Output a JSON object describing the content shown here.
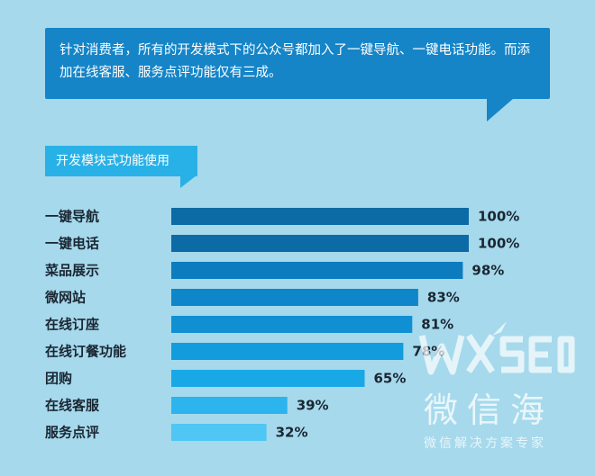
{
  "callout": {
    "text": "针对消费者，所有的开发模式下的公众号都加入了一键导航、一键电话功能。而添加在线客服、服务点评功能仅有三成。"
  },
  "section_tag": {
    "label": "开发模块式功能使用"
  },
  "watermark": {
    "logo_text": "WXSEO",
    "name": "微信海",
    "subtitle": "微信解决方案专家"
  },
  "colors": {
    "background": "#a6d9ec",
    "callout": "#1585c8",
    "tag": "#28b1e6",
    "bars": [
      "#0c6aa5",
      "#0c6aa5",
      "#0d7cbe",
      "#0e86c9",
      "#1090d2",
      "#129cdd",
      "#19a8e6",
      "#2cb4ee",
      "#4fc6f4"
    ]
  },
  "chart_data": {
    "type": "bar",
    "orientation": "horizontal",
    "categories": [
      "一键导航",
      "一键电话",
      "菜品展示",
      "微网站",
      "在线订座",
      "在线订餐功能",
      "团购",
      "在线客服",
      "服务点评"
    ],
    "values": [
      100,
      100,
      98,
      83,
      81,
      78,
      65,
      39,
      32
    ],
    "value_labels": [
      "100%",
      "100%",
      "98%",
      "83%",
      "81%",
      "78%",
      "65%",
      "39%",
      "32%"
    ],
    "xlim": [
      0,
      100
    ],
    "grid": false,
    "legend": "none"
  }
}
